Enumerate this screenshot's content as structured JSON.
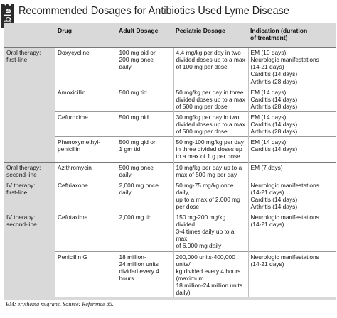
{
  "header": {
    "table_number": "Table 2",
    "title": "Recommended Dosages for Antibiotics Used Lyme Disease"
  },
  "columns": [
    "",
    "Drug",
    "Adult Dosage",
    "Pediatric Dosage",
    "Indication (duration\nof treatment)"
  ],
  "groups": [
    {
      "label": "Oral therapy:\nfirst-line",
      "rows": [
        {
          "drug": "Doxycycline",
          "adult": "100 mg bid or\n200 mg once\ndaily",
          "pediatric": "4.4 mg/kg per day in two\ndivided doses up to a max\nof 100 mg per dose",
          "indication": "EM (10 days)\nNeurologic manifestations\n(14-21 days)\nCarditis (14 days)\nArthritis (28 days)"
        },
        {
          "drug": "Amoxicillin",
          "adult": "500 mg tid",
          "pediatric": "50 mg/kg per day in three\ndivided doses up to a max\nof 500 mg per dose",
          "indication": "EM (14 days)\nCarditis (14 days)\nArthritis (28 days)"
        },
        {
          "drug": "Cefuroxime",
          "adult": "500 mg bid",
          "pediatric": "30 mg/kg per day in two\ndivided doses up to a max\nof 500 mg per dose",
          "indication": "EM (14 days)\nCarditis (14 days)\nArthritis (28 days)"
        },
        {
          "drug": "Phenoxymethyl-\npenicillin",
          "adult": "500 mg qid or\n1 gm tid",
          "pediatric": "50 mg-100 mg/kg per day\nin three divided doses up\nto a max of 1 g per dose",
          "indication": "EM (14 days)\nCarditis (14 days)"
        }
      ]
    },
    {
      "label": "Oral therapy:\nsecond-line",
      "rows": [
        {
          "drug": "Azithromycin",
          "adult": "500 mg once\ndaily",
          "pediatric": "10 mg/kg per day up to a\nmax of 500 mg per day",
          "indication": "EM (7 days)"
        }
      ]
    },
    {
      "label": "IV therapy:\nfirst-line",
      "rows": [
        {
          "drug": "Ceftriaxone",
          "adult": "2,000 mg once\ndaily",
          "pediatric": "50 mg-75 mg/kg once daily,\nup to a max of 2,000 mg\nper dose",
          "indication": "Neurologic manifestations\n(14-21 days)\nCarditis (14 days)\nArthritis (14 days)"
        }
      ]
    },
    {
      "label": "IV therapy:\nsecond-line",
      "rows": [
        {
          "drug": "Cefotaxime",
          "adult": "2,000 mg tid",
          "pediatric": "150 mg-200 mg/kg divided\n3-4 times daily up to a max\nof 6,000 mg daily",
          "indication": "Neurologic manifestations\n(14-21 days)"
        },
        {
          "drug": "Penicillin G",
          "adult": "18 million-\n24 million units\ndivided every 4\nhours",
          "pediatric": "200,000 units-400,000 units/\nkg divided every 4 hours\n(maximum\n18 million-24 million units\ndaily)",
          "indication": "Neurologic manifestations\n(14-21 days)"
        }
      ]
    }
  ],
  "footnote": "EM: erythema migrans. Source: Reference 35."
}
